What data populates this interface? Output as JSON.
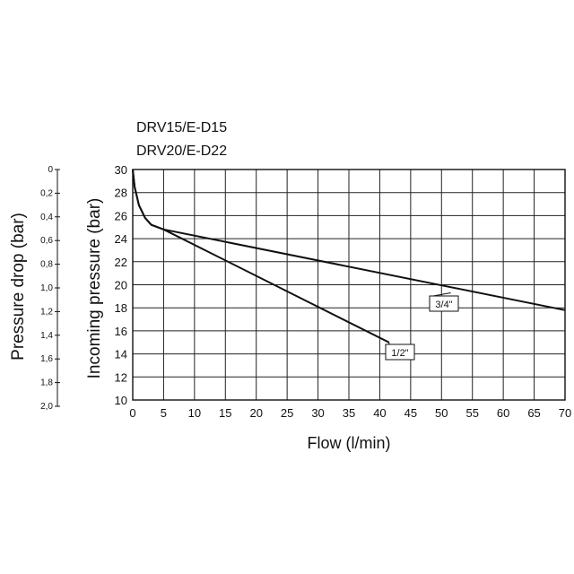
{
  "chart_data": {
    "type": "line",
    "title_lines": [
      "DRV15/E-D15",
      "DRV20/E-D22"
    ],
    "xlabel": "Flow (l/min)",
    "ylabel": "Incoming pressure   (bar)",
    "ylabel2": "Pressure drop   (bar)",
    "xlim": [
      0,
      70
    ],
    "ylim": [
      10,
      30
    ],
    "x_ticks": [
      "0",
      "5",
      "10",
      "15",
      "20",
      "25",
      "30",
      "35",
      "40",
      "45",
      "50",
      "55",
      "60",
      "65",
      "70"
    ],
    "y_ticks": [
      "30",
      "28",
      "26",
      "24",
      "22",
      "20",
      "18",
      "16",
      "14",
      "12",
      "10"
    ],
    "y2_ticks": [
      "0",
      "0,2",
      "0,4",
      "0,6",
      "0,8",
      "1,0",
      "1,2",
      "1,4",
      "1,6",
      "1,8",
      "2,0"
    ],
    "grid": true,
    "series": [
      {
        "name": "1/2\"",
        "x": [
          0,
          0.3,
          1,
          2,
          3,
          5,
          41.5
        ],
        "y": [
          30,
          28.5,
          26.9,
          25.8,
          25.2,
          24.8,
          15
        ]
      },
      {
        "name": "3/4\"",
        "x": [
          0,
          0.3,
          1,
          2,
          3,
          5,
          70
        ],
        "y": [
          30,
          28.5,
          26.9,
          25.8,
          25.2,
          24.8,
          17.8
        ]
      }
    ],
    "annotations": [
      {
        "text": "1/2\"",
        "series": 0,
        "x": 41.5,
        "y": 15
      },
      {
        "text": "3/4\"",
        "series": 1,
        "x": 51.5,
        "y": 19.3
      }
    ]
  }
}
